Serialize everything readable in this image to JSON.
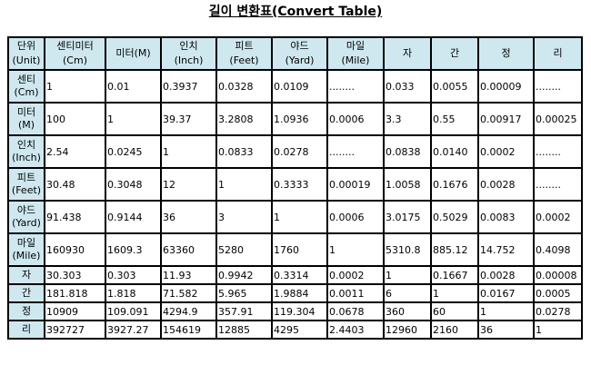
{
  "title": "길이 변환표(Convert Table)",
  "header": [
    [
      "단위",
      "(Unit)"
    ],
    [
      "센티미터",
      "(Cm)"
    ],
    [
      "미터(M)"
    ],
    [
      "인치",
      "(Inch)"
    ],
    [
      "피트",
      "(Feet)"
    ],
    [
      "야드",
      "(Yard)"
    ],
    [
      "마일",
      "(Mile)"
    ],
    [
      "자"
    ],
    [
      "간"
    ],
    [
      "정"
    ],
    [
      "리"
    ]
  ],
  "rows": [
    {
      "label": [
        "센티",
        "(Cm)"
      ],
      "values": [
        "1",
        "0.01",
        "0.3937",
        "0.0328",
        "0.0109",
        "........",
        "0.033",
        "0.0055",
        "0.00009",
        "........"
      ]
    },
    {
      "label": [
        "미터",
        "(M)"
      ],
      "values": [
        "100",
        "1",
        "39.37",
        "3.2808",
        "1.0936",
        "0.0006",
        "3.3",
        "0.55",
        "0.00917",
        "0.00025"
      ]
    },
    {
      "label": [
        "인치",
        "(Inch)"
      ],
      "values": [
        "2.54",
        "0.0245",
        "1",
        "0.0833",
        "0.0278",
        "........",
        "0.0838",
        "0.0140",
        "0.0002",
        "........"
      ]
    },
    {
      "label": [
        "피트",
        "(Feet)"
      ],
      "values": [
        "30.48",
        "0.3048",
        "12",
        "1",
        "0.3333",
        "0.00019",
        "1.0058",
        "0.1676",
        "0.0028",
        "........"
      ]
    },
    {
      "label": [
        "야드",
        "(Yard)"
      ],
      "values": [
        "91.438",
        "0.9144",
        "36",
        "3",
        "1",
        "0.0006",
        "3.0175",
        "0.5029",
        "0.0083",
        "0.0002"
      ]
    },
    {
      "label": [
        "마일",
        "(Mile)"
      ],
      "values": [
        "160930",
        "1609.3",
        "63360",
        "5280",
        "1760",
        "1",
        "5310.8",
        "885.12",
        "14.752",
        "0.4098"
      ]
    },
    {
      "label": [
        "자"
      ],
      "values": [
        "30.303",
        "0.303",
        "11.93",
        "0.9942",
        "0.3314",
        "0.0002",
        "1",
        "0.1667",
        "0.0028",
        "0.00008"
      ]
    },
    {
      "label": [
        "간"
      ],
      "values": [
        "181.818",
        "1.818",
        "71.582",
        "5.965",
        "1.9884",
        "0.0011",
        "6",
        "1",
        "0.0167",
        "0.0005"
      ]
    },
    {
      "label": [
        "정"
      ],
      "values": [
        "10909",
        "109.091",
        "4294.9",
        "357.91",
        "119.304",
        "0.0678",
        "360",
        "60",
        "1",
        "0.0278"
      ]
    },
    {
      "label": [
        "리"
      ],
      "values": [
        "392727",
        "3927.27",
        "154619",
        "12885",
        "4295",
        "2.4403",
        "12960",
        "2160",
        "36",
        "1"
      ]
    }
  ]
}
